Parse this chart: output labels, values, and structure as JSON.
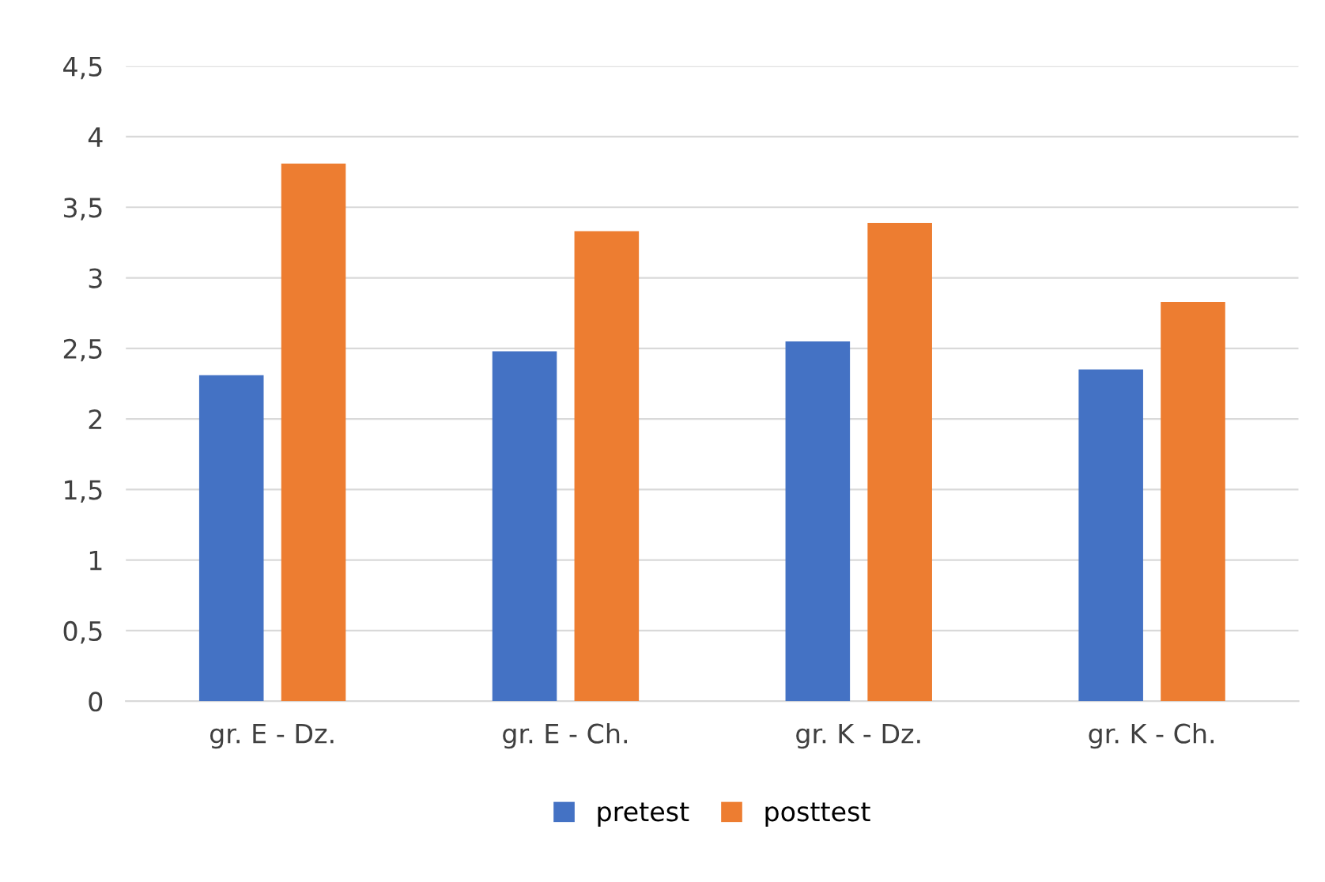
{
  "chart_data": {
    "type": "bar",
    "categories": [
      "gr. E - Dz.",
      "gr. E - Ch.",
      "gr. K - Dz.",
      "gr. K - Ch."
    ],
    "series": [
      {
        "name": "pretest",
        "color": "#4472c4",
        "values": [
          2.31,
          2.48,
          2.55,
          2.35
        ]
      },
      {
        "name": "posttest",
        "color": "#ed7d31",
        "values": [
          3.81,
          3.33,
          3.39,
          2.83
        ]
      }
    ],
    "ylim": [
      0,
      4.5
    ],
    "yticks": [
      0,
      {
        "value": 0.5,
        "label": "0,5"
      },
      1,
      {
        "value": 1.5,
        "label": "1,5"
      },
      2,
      {
        "value": 2.5,
        "label": "2,5"
      },
      3,
      {
        "value": 3.5,
        "label": "3,5"
      },
      4,
      {
        "value": 4.5,
        "label": "4,5"
      }
    ],
    "grid": "y",
    "legend": "bottom"
  }
}
